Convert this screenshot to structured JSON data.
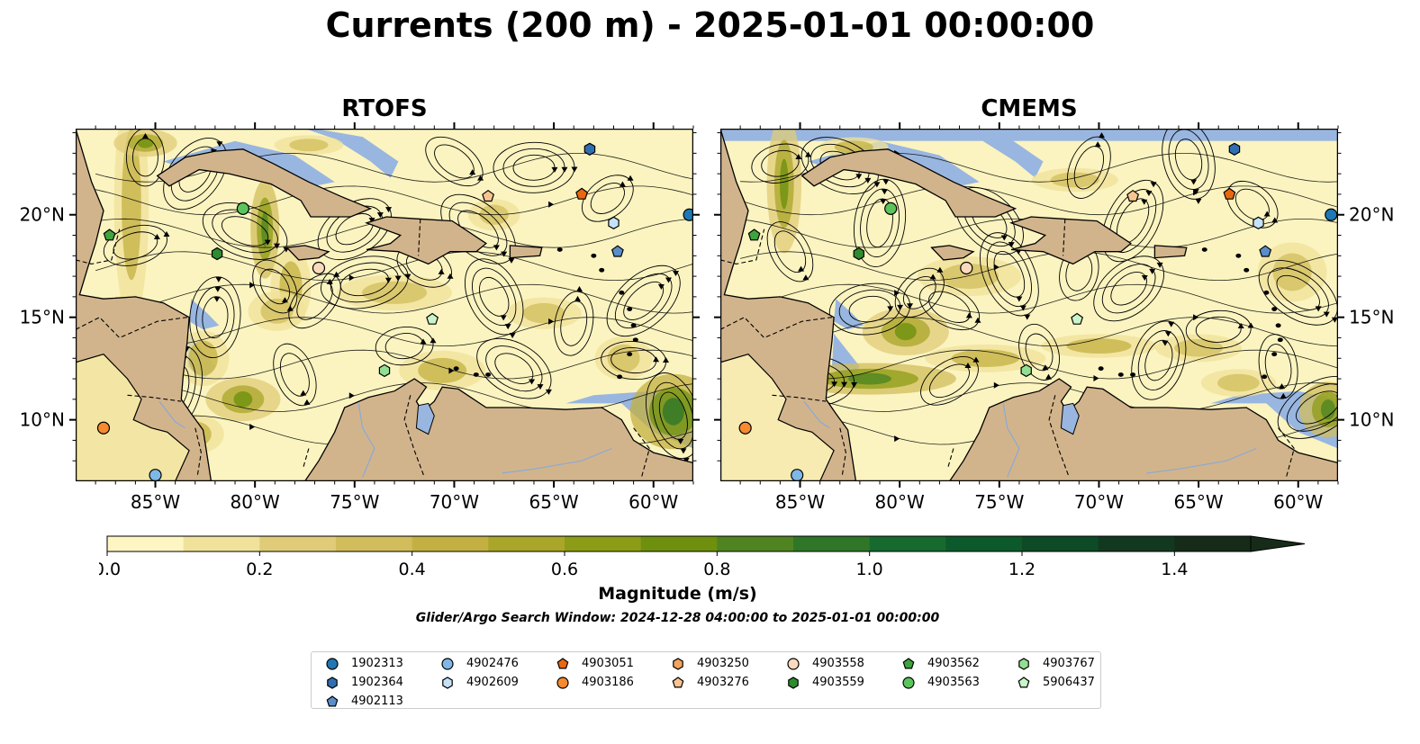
{
  "title": "Currents (200 m) - 2025-01-01 00:00:00",
  "panels": [
    {
      "title": "RTOFS"
    },
    {
      "title": "CMEMS"
    }
  ],
  "map": {
    "lon_range": [
      -89,
      -58
    ],
    "lat_range": [
      7,
      24.2
    ],
    "lon_ticks": [
      "85°W",
      "80°W",
      "75°W",
      "70°W",
      "65°W",
      "60°W"
    ],
    "lat_ticks": [
      "20°N",
      "15°N",
      "10°N"
    ],
    "colors": {
      "land": "#d2b48c",
      "ocean_shallow": "#99b6e0",
      "current_low": "#fbf4c0",
      "streamline": "#000000"
    }
  },
  "colorbar": {
    "label": "Magnitude (m/s)",
    "ticks": [
      "0.0",
      "0.2",
      "0.4",
      "0.6",
      "0.8",
      "1.0",
      "1.2",
      "1.4"
    ],
    "range": [
      0,
      1.5
    ],
    "extend": "max",
    "colors": [
      "#fdf6c3",
      "#f0e29a",
      "#e0cc78",
      "#d2bd5c",
      "#c3b042",
      "#a9a62a",
      "#8c9c16",
      "#6e900e",
      "#4f8420",
      "#2f7628",
      "#166a2e",
      "#0c5a2c",
      "#0d4a26",
      "#12391f",
      "#162c19"
    ]
  },
  "subtitle": "Glider/Argo Search Window: 2024-12-28 04:00:00 to 2025-01-01 00:00:00",
  "legend": [
    {
      "id": "1902313",
      "shape": "circle",
      "color": "#1f77b4"
    },
    {
      "id": "1902364",
      "shape": "hexagon",
      "color": "#2f6fb0"
    },
    {
      "id": "4902113",
      "shape": "pentagon",
      "color": "#5a8ec9"
    },
    {
      "id": "4902476",
      "shape": "circle",
      "color": "#7fb8e6"
    },
    {
      "id": "4902609",
      "shape": "hexagon",
      "color": "#c6e2f7"
    },
    {
      "id": "4903051",
      "shape": "pentagon",
      "color": "#e8680f"
    },
    {
      "id": "4903186",
      "shape": "circle",
      "color": "#f58a2f"
    },
    {
      "id": "4903250",
      "shape": "hexagon",
      "color": "#f4a45c"
    },
    {
      "id": "4903276",
      "shape": "pentagon",
      "color": "#f8c591"
    },
    {
      "id": "4903558",
      "shape": "circle",
      "color": "#fbd9bd"
    },
    {
      "id": "4903559",
      "shape": "hexagon",
      "color": "#2e8b2e"
    },
    {
      "id": "4903562",
      "shape": "pentagon",
      "color": "#3fa33f"
    },
    {
      "id": "4903563",
      "shape": "circle",
      "color": "#5cc45c"
    },
    {
      "id": "4903767",
      "shape": "hexagon",
      "color": "#92de92"
    },
    {
      "id": "5906437",
      "shape": "pentagon",
      "color": "#c9f5c9"
    }
  ],
  "floats": [
    {
      "id": "1902313",
      "lon": -58.2,
      "lat": 20.0
    },
    {
      "id": "1902364",
      "lon": -63.2,
      "lat": 23.2
    },
    {
      "id": "4902113",
      "lon": -61.8,
      "lat": 18.2
    },
    {
      "id": "4902476",
      "lon": -85.0,
      "lat": 7.3
    },
    {
      "id": "4902609",
      "lon": -62.0,
      "lat": 19.6
    },
    {
      "id": "4903051",
      "lon": -63.6,
      "lat": 21.0
    },
    {
      "id": "4903186",
      "lon": -87.6,
      "lat": 9.6
    },
    {
      "id": "4903276",
      "lon": -68.3,
      "lat": 20.9
    },
    {
      "id": "4903558",
      "lon": -76.8,
      "lat": 17.4
    },
    {
      "id": "4903559",
      "lon": -81.9,
      "lat": 18.1
    },
    {
      "id": "4903562",
      "lon": -87.3,
      "lat": 19.0
    },
    {
      "id": "4903563",
      "lon": -80.6,
      "lat": 20.3
    },
    {
      "id": "4903767",
      "lon": -73.5,
      "lat": 12.4
    },
    {
      "id": "5906437",
      "lon": -71.1,
      "lat": 14.9
    }
  ]
}
